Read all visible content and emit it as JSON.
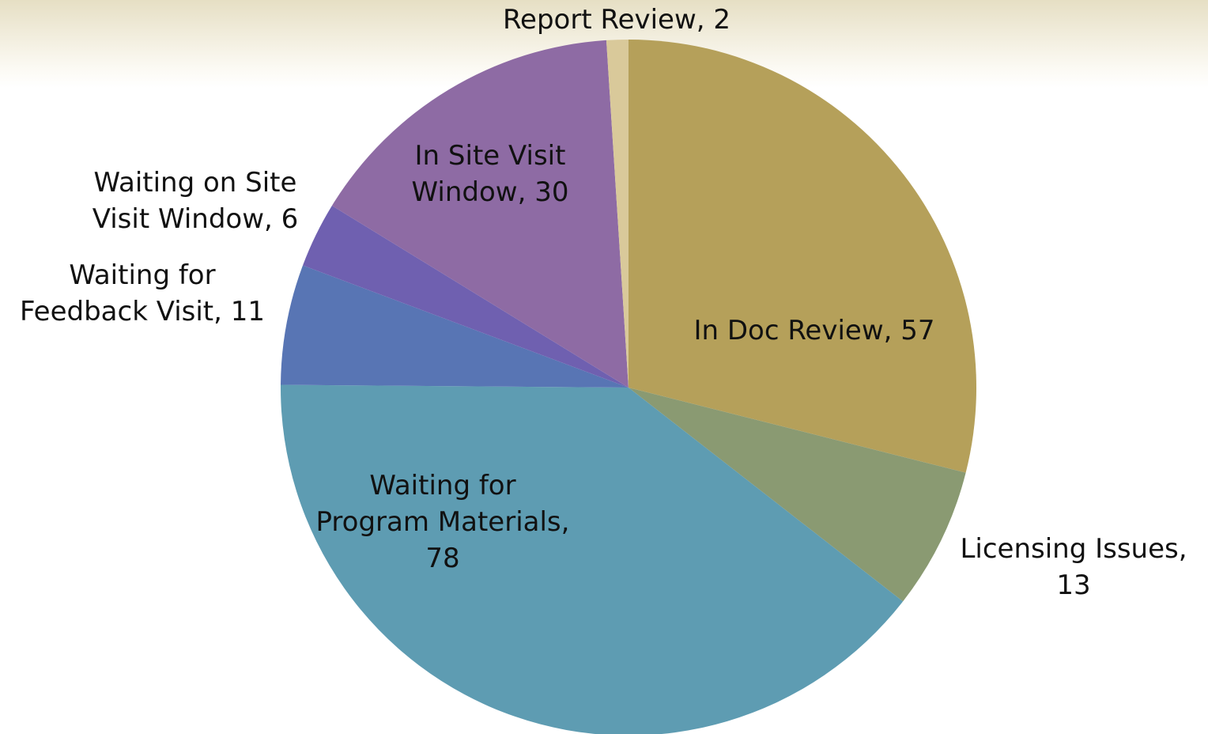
{
  "chart_data": {
    "type": "pie",
    "categories": [
      "In Doc Review",
      "Licensing Issues",
      "Waiting for Program Materials",
      "Waiting for Feedback Visit",
      "Waiting on Site Visit Window",
      "In Site Visit Window",
      "Report Review"
    ],
    "values": [
      57,
      13,
      78,
      11,
      6,
      30,
      2
    ],
    "value_labels": [
      "In Doc Review, 57",
      "Licensing Issues,\n13",
      "Waiting for\nProgram Materials,\n78",
      "Waiting for\nFeedback Visit, 11",
      "Waiting on Site\nVisit Window, 6",
      "In Site Visit\nWindow, 30",
      "Report Review, 2"
    ],
    "colors": [
      "#b5a05a",
      "#8a9a72",
      "#5e9cb2",
      "#5875b4",
      "#6f60b0",
      "#8e6ba4",
      "#d9c99a"
    ]
  }
}
